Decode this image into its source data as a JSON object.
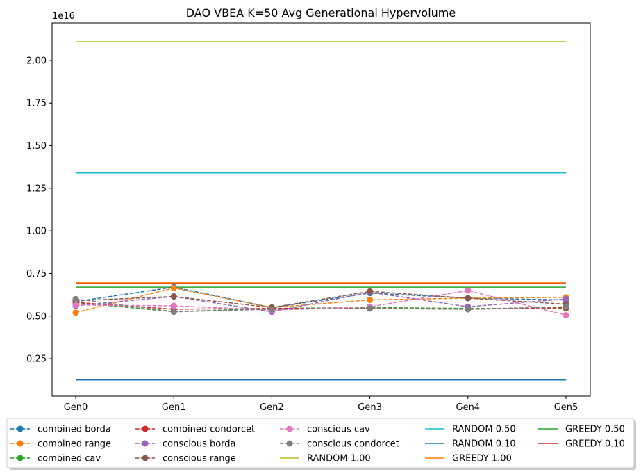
{
  "chart_data": {
    "type": "line",
    "title": "DAO VBEA K=50 Avg Generational Hypervolume",
    "xlabel": "",
    "ylabel": "",
    "y_multiplier_label": "1e16",
    "categories": [
      "Gen0",
      "Gen1",
      "Gen2",
      "Gen3",
      "Gen4",
      "Gen5"
    ],
    "y_ticks": [
      0.25,
      0.5,
      0.75,
      1.0,
      1.25,
      1.5,
      1.75,
      2.0
    ],
    "y_tick_labels": [
      "0.25",
      "0.50",
      "0.75",
      "1.00",
      "1.25",
      "1.50",
      "1.75",
      "2.00"
    ],
    "ylim": [
      0.03,
      2.22
    ],
    "grid": false,
    "legend_position": "bottom",
    "series": [
      {
        "name": "combined borda",
        "style": "dashed-marker",
        "color": "#1f77b4",
        "values": [
          5.85,
          6.7,
          5.5,
          6.35,
          6.05,
          5.95
        ]
      },
      {
        "name": "combined range",
        "style": "dashed-marker",
        "color": "#ff7f0e",
        "values": [
          5.2,
          6.65,
          5.5,
          5.95,
          6.05,
          6.1
        ]
      },
      {
        "name": "combined cav",
        "style": "dashed-marker",
        "color": "#2ca02c",
        "values": [
          5.8,
          5.25,
          5.45,
          5.5,
          5.45,
          5.45
        ]
      },
      {
        "name": "combined condorcet",
        "style": "dashed-marker",
        "color": "#d62728",
        "values": [
          5.8,
          5.4,
          5.45,
          5.45,
          5.4,
          5.5
        ]
      },
      {
        "name": "conscious borda",
        "style": "dashed-marker",
        "color": "#9467bd",
        "values": [
          5.6,
          6.15,
          5.25,
          6.4,
          5.55,
          6.0
        ]
      },
      {
        "name": "conscious range",
        "style": "dashed-marker",
        "color": "#8c564b",
        "values": [
          5.9,
          6.15,
          5.5,
          6.45,
          6.05,
          5.7
        ]
      },
      {
        "name": "conscious cav",
        "style": "dashed-marker",
        "color": "#e377c2",
        "values": [
          5.65,
          5.6,
          5.35,
          5.55,
          6.5,
          5.05
        ]
      },
      {
        "name": "conscious condorcet",
        "style": "dashed-marker",
        "color": "#7f7f7f",
        "values": [
          6.0,
          5.25,
          5.4,
          5.45,
          5.4,
          5.55
        ]
      },
      {
        "name": "RANDOM 1.00",
        "style": "solid",
        "color": "#bcbd22",
        "values": [
          21.1,
          21.1,
          21.1,
          21.1,
          21.1,
          21.1
        ]
      },
      {
        "name": "RANDOM 0.50",
        "style": "solid",
        "color": "#17becf",
        "values": [
          13.4,
          13.4,
          13.4,
          13.4,
          13.4,
          13.4
        ]
      },
      {
        "name": "RANDOM 0.10",
        "style": "solid",
        "color": "#1f77b4",
        "values": [
          1.25,
          1.25,
          1.25,
          1.25,
          1.25,
          1.25
        ]
      },
      {
        "name": "GREEDY 1.00",
        "style": "solid",
        "color": "#ff7f0e",
        "values": [
          6.95,
          6.95,
          6.95,
          6.95,
          6.95,
          6.95
        ]
      },
      {
        "name": "GREEDY 0.50",
        "style": "solid",
        "color": "#2ca02c",
        "values": [
          6.7,
          6.7,
          6.7,
          6.7,
          6.7,
          6.7
        ]
      },
      {
        "name": "GREEDY 0.10",
        "style": "solid",
        "color": "#d62728",
        "values": [
          6.9,
          6.9,
          6.9,
          6.9,
          6.9,
          6.9
        ]
      }
    ],
    "legend_columns": [
      [
        "combined borda",
        "combined range",
        "combined cav"
      ],
      [
        "combined condorcet",
        "conscious borda",
        "conscious range"
      ],
      [
        "conscious cav",
        "conscious condorcet",
        "RANDOM 1.00"
      ],
      [
        "RANDOM 0.50",
        "RANDOM 0.10",
        "GREEDY 1.00"
      ],
      [
        "GREEDY 0.50",
        "GREEDY 0.10"
      ]
    ]
  }
}
